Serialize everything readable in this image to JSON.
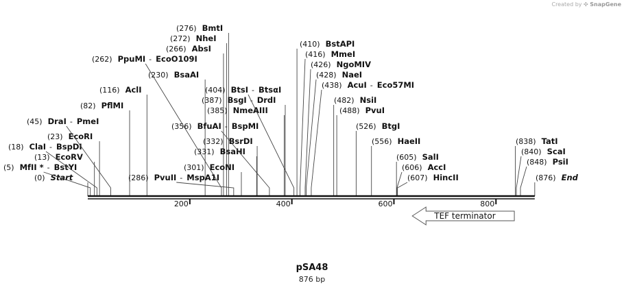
{
  "credit": {
    "prefix": "Created by",
    "brand": "SnapGene"
  },
  "plasmid": {
    "name": "pSA48",
    "size_label": "876 bp"
  },
  "axis_ticks": [
    {
      "value": 200,
      "label": "200"
    },
    {
      "value": 400,
      "label": "400"
    },
    {
      "value": 600,
      "label": "600"
    },
    {
      "value": 800,
      "label": "800"
    }
  ],
  "features": [
    {
      "name": "TEF terminator",
      "start": 636,
      "end": 836,
      "direction": "reverse"
    }
  ],
  "sites": [
    {
      "pos": "(0)",
      "name": "Start",
      "bp": 0,
      "italic": true
    },
    {
      "pos": "(5)",
      "name": "MfII *",
      "alt": "BstYI",
      "bp": 5
    },
    {
      "pos": "(13)",
      "name": "EcoRV",
      "bp": 13
    },
    {
      "pos": "(18)",
      "name": "ClaI",
      "alt": "BspDI",
      "bp": 18
    },
    {
      "pos": "(23)",
      "name": "EcoRI",
      "bp": 23
    },
    {
      "pos": "(45)",
      "name": "DraI",
      "alt": "PmeI",
      "bp": 45
    },
    {
      "pos": "(82)",
      "name": "PflMI",
      "bp": 82
    },
    {
      "pos": "(116)",
      "name": "AclI",
      "bp": 116
    },
    {
      "pos": "(230)",
      "name": "BsaAI",
      "bp": 230
    },
    {
      "pos": "(262)",
      "name": "PpuMI",
      "alt": "EcoO109I",
      "bp": 262
    },
    {
      "pos": "(266)",
      "name": "AbsI",
      "bp": 266
    },
    {
      "pos": "(272)",
      "name": "NheI",
      "bp": 272
    },
    {
      "pos": "(276)",
      "name": "BmtI",
      "bp": 276
    },
    {
      "pos": "(286)",
      "name": "PvuII",
      "alt": "MspA1I",
      "bp": 286
    },
    {
      "pos": "(301)",
      "name": "EcoNI",
      "bp": 301
    },
    {
      "pos": "(331)",
      "name": "BsaHI",
      "bp": 331
    },
    {
      "pos": "(332)",
      "name": "BsrDI",
      "bp": 332
    },
    {
      "pos": "(356)",
      "name": "BfuAI",
      "alt": "BspMI",
      "bp": 356
    },
    {
      "pos": "(385)",
      "name": "NmeAIII",
      "bp": 385
    },
    {
      "pos": "(387)",
      "name": "BsgI",
      "alt": "DrdI",
      "bp": 387
    },
    {
      "pos": "(404)",
      "name": "BtsI",
      "alt": "BtsαI",
      "bp": 404
    },
    {
      "pos": "(410)",
      "name": "BstAPI",
      "bp": 410
    },
    {
      "pos": "(416)",
      "name": "MmeI",
      "bp": 416
    },
    {
      "pos": "(426)",
      "name": "NgoMIV",
      "bp": 426
    },
    {
      "pos": "(428)",
      "name": "NaeI",
      "bp": 428
    },
    {
      "pos": "(438)",
      "name": "AcuI",
      "alt": "Eco57MI",
      "bp": 438
    },
    {
      "pos": "(482)",
      "name": "NsiI",
      "bp": 482
    },
    {
      "pos": "(488)",
      "name": "PvuI",
      "bp": 488
    },
    {
      "pos": "(526)",
      "name": "BtgI",
      "bp": 526
    },
    {
      "pos": "(556)",
      "name": "HaeII",
      "bp": 556
    },
    {
      "pos": "(605)",
      "name": "SalI",
      "bp": 605
    },
    {
      "pos": "(606)",
      "name": "AccI",
      "bp": 606
    },
    {
      "pos": "(607)",
      "name": "HincII",
      "bp": 607
    },
    {
      "pos": "(838)",
      "name": "TatI",
      "bp": 838
    },
    {
      "pos": "(840)",
      "name": "ScaI",
      "bp": 840
    },
    {
      "pos": "(848)",
      "name": "PsiI",
      "bp": 848
    },
    {
      "pos": "(876)",
      "name": "End",
      "bp": 876,
      "italic": true
    }
  ]
}
